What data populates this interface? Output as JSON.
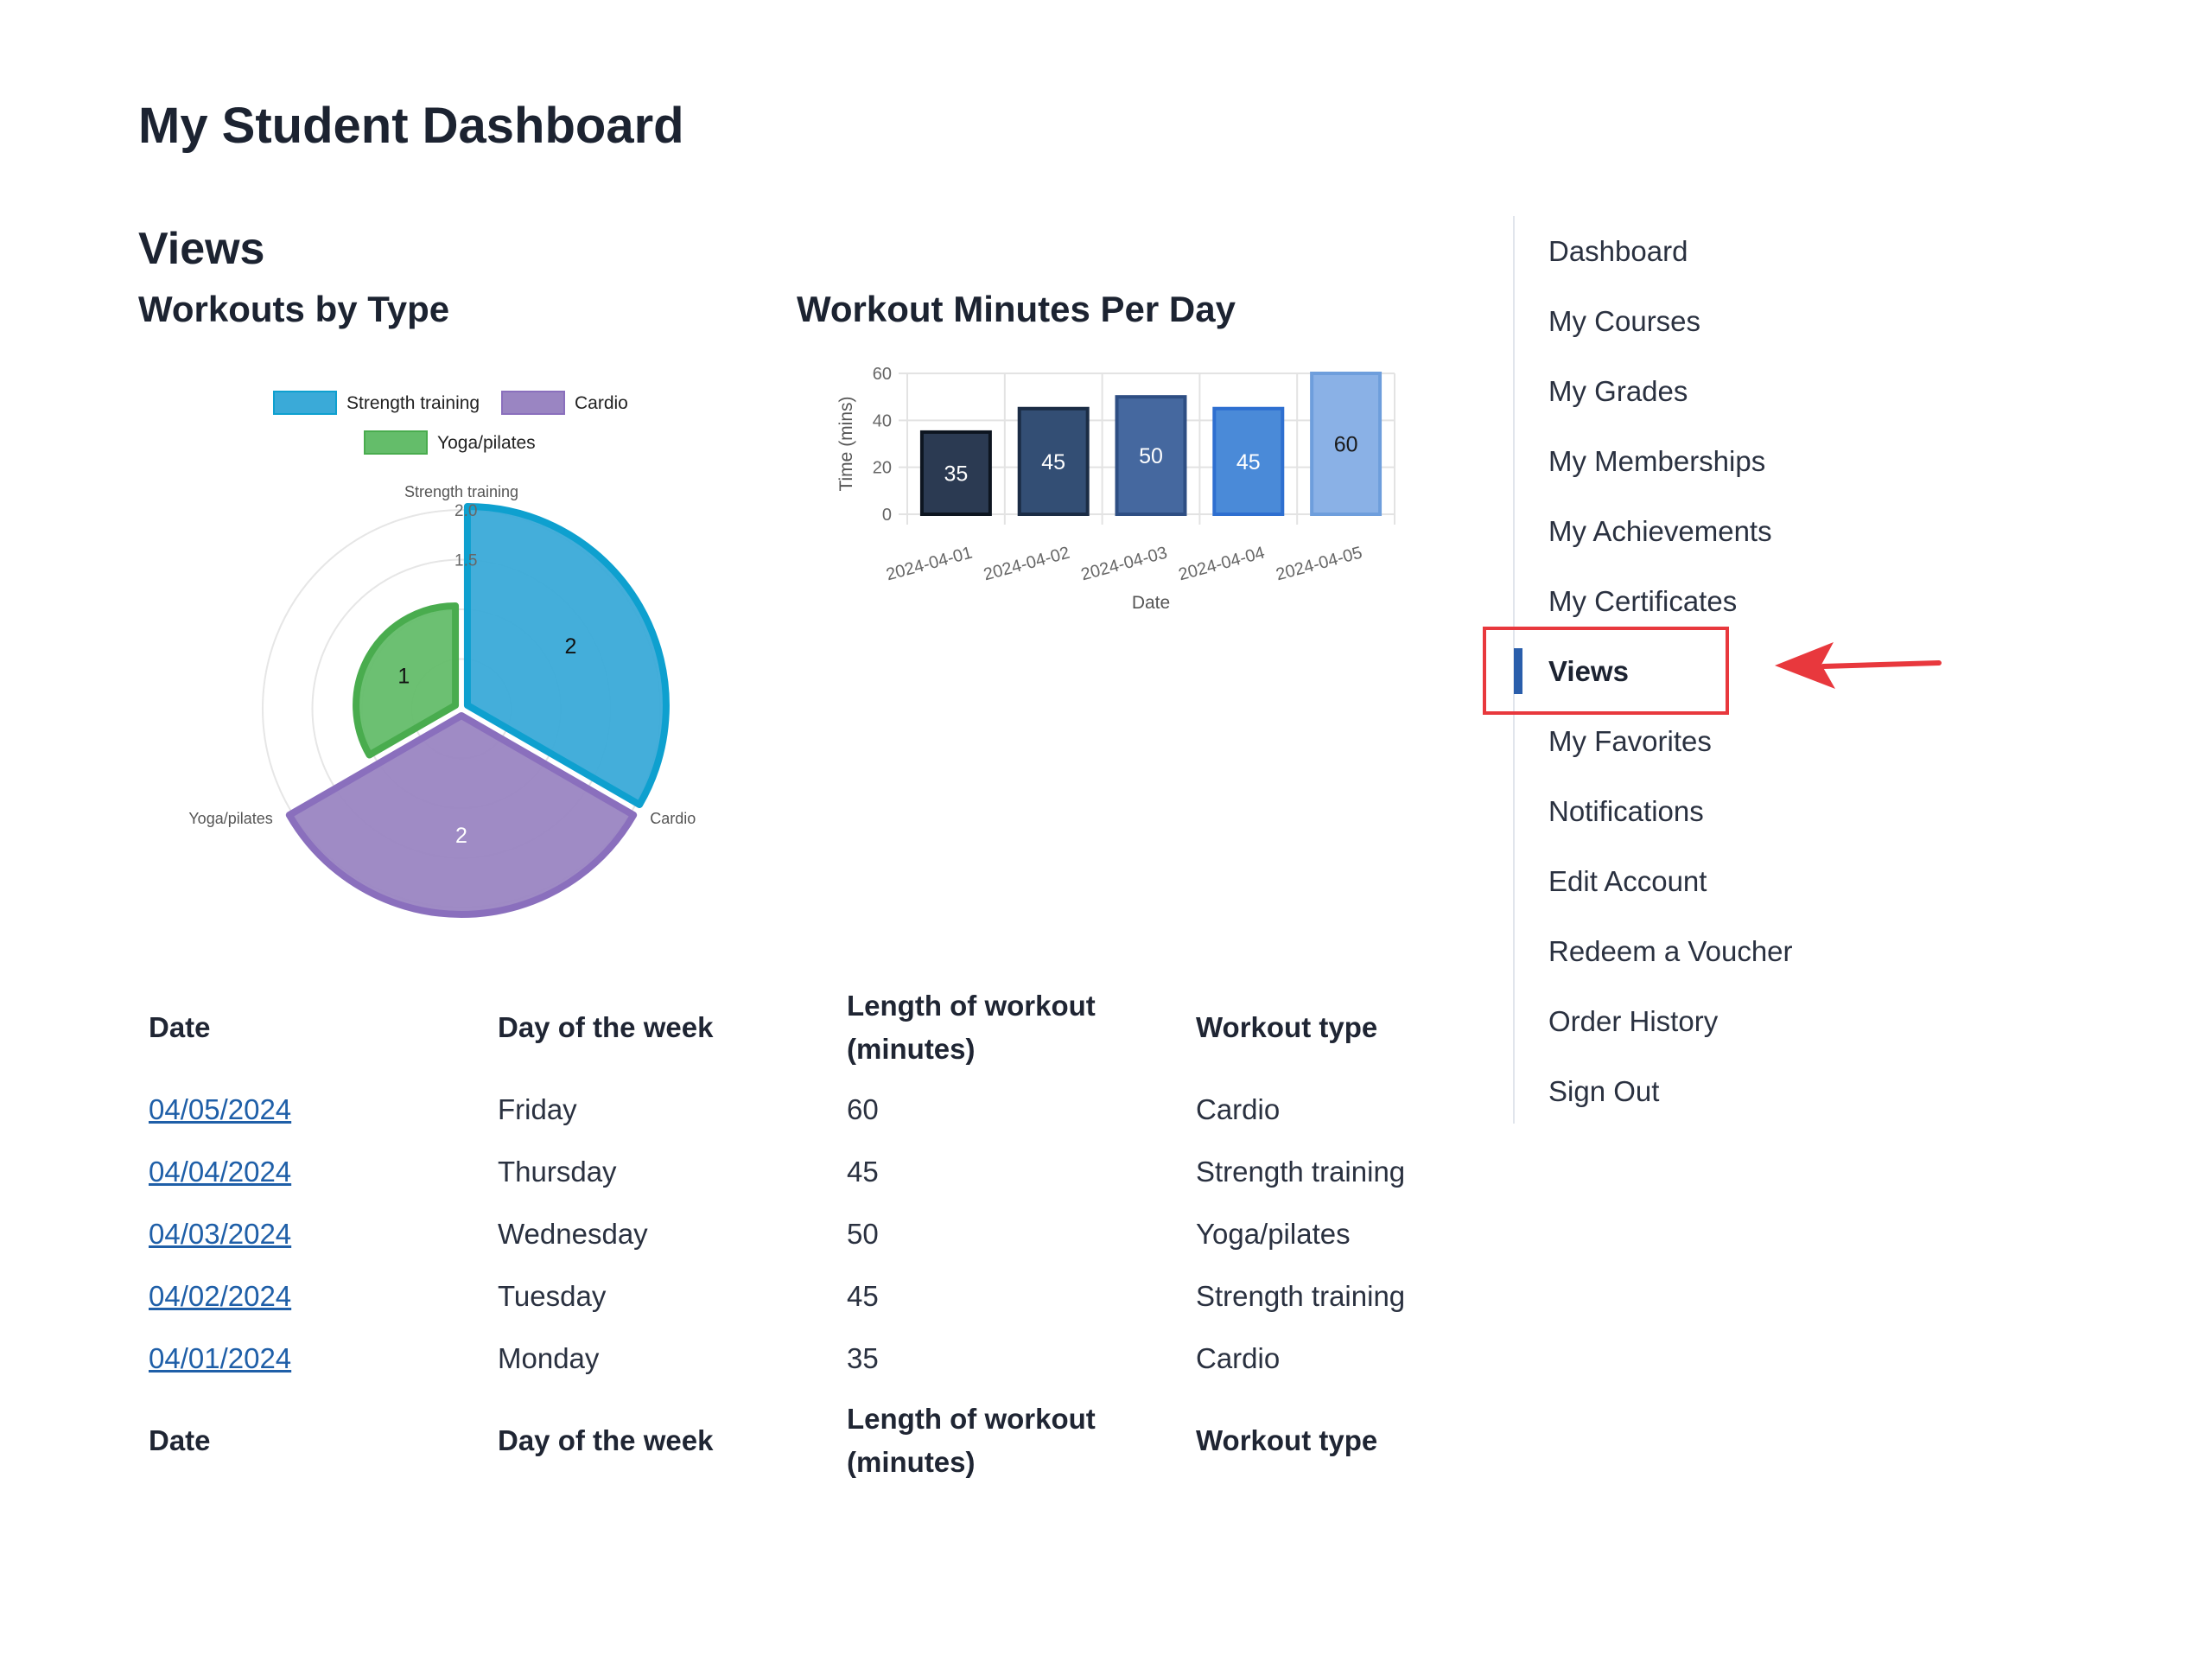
{
  "page": {
    "title": "My Student Dashboard",
    "section_title": "Views"
  },
  "charts": {
    "polar_title": "Workouts by Type",
    "bar_title": "Workout Minutes Per Day"
  },
  "chart_data": [
    {
      "type": "polarArea",
      "title": "Workouts by Type",
      "categories": [
        "Strength training",
        "Cardio",
        "Yoga/pilates"
      ],
      "values": [
        2,
        2,
        1
      ],
      "colors": [
        "#3aaad8",
        "#9a85c2",
        "#64bd6a"
      ],
      "border_colors": [
        "#0ea0cf",
        "#8a6fbd",
        "#49ac4e"
      ],
      "rlim": [
        0,
        2
      ],
      "legend_position": "top",
      "radial_ticks": [
        "2.0",
        "1.5"
      ]
    },
    {
      "type": "bar",
      "title": "Workout Minutes Per Day",
      "categories": [
        "2024-04-01",
        "2024-04-02",
        "2024-04-03",
        "2024-04-04",
        "2024-04-05"
      ],
      "values": [
        35,
        45,
        50,
        45,
        60
      ],
      "colors": [
        "#2b3a52",
        "#334e74",
        "#45689f",
        "#4a8ad8",
        "#8ab1e6"
      ],
      "border_colors": [
        "#0d1520",
        "#1b2c45",
        "#2e4e83",
        "#2e6fd0",
        "#6e9edc"
      ],
      "label_colors": [
        "#ffffff",
        "#ffffff",
        "#ffffff",
        "#ffffff",
        "#1a1a1a"
      ],
      "xlabel": "Date",
      "ylabel": "Time (mins)",
      "ylim": [
        0,
        60
      ],
      "yticks": [
        0,
        20,
        40,
        60
      ],
      "grid": true
    }
  ],
  "table": {
    "headers": [
      "Date",
      "Day of the week",
      "Length of workout (minutes)",
      "Workout type"
    ],
    "rows": [
      [
        "04/05/2024",
        "Friday",
        "60",
        "Cardio"
      ],
      [
        "04/04/2024",
        "Thursday",
        "45",
        "Strength training"
      ],
      [
        "04/03/2024",
        "Wednesday",
        "50",
        "Yoga/pilates"
      ],
      [
        "04/02/2024",
        "Tuesday",
        "45",
        "Strength training"
      ],
      [
        "04/01/2024",
        "Monday",
        "35",
        "Cardio"
      ]
    ]
  },
  "sidebar": {
    "items": [
      {
        "label": "Dashboard"
      },
      {
        "label": "My Courses"
      },
      {
        "label": "My Grades"
      },
      {
        "label": "My Memberships"
      },
      {
        "label": "My Achievements"
      },
      {
        "label": "My Certificates"
      },
      {
        "label": "Views",
        "active": true
      },
      {
        "label": "My Favorites"
      },
      {
        "label": "Notifications"
      },
      {
        "label": "Edit Account"
      },
      {
        "label": "Redeem a Voucher"
      },
      {
        "label": "Order History"
      },
      {
        "label": "Sign Out"
      }
    ]
  },
  "annotation": {
    "highlight_color": "#e8383d"
  }
}
